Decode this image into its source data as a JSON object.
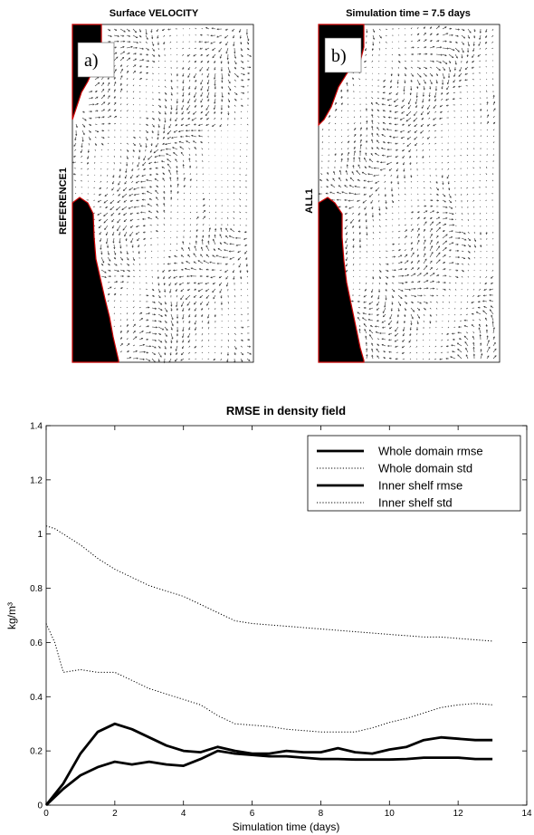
{
  "panels": [
    {
      "title": "Surface VELOCITY",
      "label": "a)",
      "run_label": "REFERENCE1"
    },
    {
      "title": "Simulation time = 7.5 days",
      "label": "b)",
      "run_label": "ALL1"
    }
  ],
  "colors": {
    "land": "#000000",
    "coast": "#cc0000",
    "vector": "#333333"
  },
  "chart_data": {
    "type": "line",
    "title": "RMSE in density field",
    "xlabel": "Simulation time (days)",
    "ylabel": "kg/m³",
    "xlim": [
      0,
      14
    ],
    "ylim": [
      0,
      1.4
    ],
    "xticks": [
      "0",
      "2",
      "4",
      "6",
      "8",
      "10",
      "12",
      "14"
    ],
    "yticks": [
      "0",
      "0.2",
      "0.4",
      "0.6",
      "0.8",
      "1",
      "1.2",
      "1.4"
    ],
    "grid": false,
    "legend_position": "top-right",
    "series": [
      {
        "name": "Whole domain rmse",
        "style": "solid",
        "x": [
          0,
          0.5,
          1,
          1.5,
          2,
          2.5,
          3,
          3.5,
          4,
          4.5,
          5,
          5.5,
          6,
          6.5,
          7,
          7.5,
          8,
          8.5,
          9,
          9.5,
          10,
          10.5,
          11,
          11.5,
          12,
          12.5,
          13
        ],
        "y": [
          0,
          0.06,
          0.11,
          0.14,
          0.16,
          0.15,
          0.16,
          0.15,
          0.145,
          0.17,
          0.2,
          0.19,
          0.185,
          0.18,
          0.18,
          0.175,
          0.17,
          0.17,
          0.168,
          0.168,
          0.168,
          0.17,
          0.175,
          0.175,
          0.175,
          0.17,
          0.17
        ]
      },
      {
        "name": "Whole domain std",
        "style": "dotted",
        "x": [
          0,
          0.25,
          0.5,
          1,
          1.5,
          2,
          2.5,
          3,
          3.5,
          4,
          4.5,
          5,
          5.5,
          6,
          6.5,
          7,
          7.5,
          8,
          8.5,
          9,
          9.5,
          10,
          10.5,
          11,
          11.5,
          12,
          12.5,
          13
        ],
        "y": [
          1.03,
          1.02,
          1.0,
          0.96,
          0.91,
          0.87,
          0.84,
          0.81,
          0.79,
          0.77,
          0.74,
          0.71,
          0.68,
          0.67,
          0.665,
          0.66,
          0.655,
          0.65,
          0.645,
          0.64,
          0.635,
          0.63,
          0.625,
          0.62,
          0.62,
          0.615,
          0.61,
          0.605
        ]
      },
      {
        "name": "Inner shelf rmse",
        "style": "solid",
        "x": [
          0,
          0.5,
          1,
          1.5,
          2,
          2.5,
          3,
          3.5,
          4,
          4.5,
          5,
          5.5,
          6,
          6.5,
          7,
          7.5,
          8,
          8.5,
          9,
          9.5,
          10,
          10.5,
          11,
          11.5,
          12,
          12.5,
          13
        ],
        "y": [
          0,
          0.08,
          0.19,
          0.27,
          0.3,
          0.28,
          0.25,
          0.22,
          0.2,
          0.195,
          0.215,
          0.2,
          0.19,
          0.19,
          0.2,
          0.195,
          0.195,
          0.21,
          0.195,
          0.19,
          0.205,
          0.215,
          0.24,
          0.25,
          0.245,
          0.24,
          0.24
        ]
      },
      {
        "name": "Inner shelf std",
        "style": "dotted",
        "x": [
          0,
          0.25,
          0.5,
          1,
          1.5,
          2,
          2.5,
          3,
          3.5,
          4,
          4.5,
          5,
          5.5,
          6,
          6.5,
          7,
          7.5,
          8,
          8.5,
          9,
          9.5,
          10,
          10.5,
          11,
          11.5,
          12,
          12.5,
          13
        ],
        "y": [
          0.67,
          0.6,
          0.49,
          0.5,
          0.49,
          0.49,
          0.46,
          0.43,
          0.41,
          0.39,
          0.37,
          0.33,
          0.3,
          0.295,
          0.29,
          0.28,
          0.275,
          0.27,
          0.27,
          0.27,
          0.285,
          0.305,
          0.32,
          0.34,
          0.36,
          0.37,
          0.375,
          0.37
        ]
      }
    ]
  }
}
